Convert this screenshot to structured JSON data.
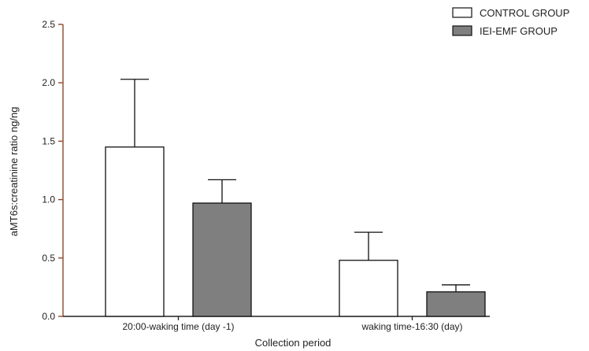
{
  "chart_data": {
    "type": "bar",
    "xlabel": "Collection period",
    "ylabel": "aMT6s:creatinine ratio ng/ng",
    "ylim": [
      0,
      2.5
    ],
    "yticks": [
      "0.0",
      "0.5",
      "1.0",
      "1.5",
      "2.0",
      "2.5"
    ],
    "categories": [
      "20:00-waking time (day -1)",
      "waking time-16:30 (day)"
    ],
    "series": [
      {
        "name": "CONTROL GROUP",
        "values": [
          1.45,
          0.48
        ],
        "errors": [
          0.58,
          0.24
        ],
        "fill": "#ffffff",
        "stroke": "#111111"
      },
      {
        "name": "IEI-EMF GROUP",
        "values": [
          0.97,
          0.21
        ],
        "errors": [
          0.2,
          0.06
        ],
        "fill": "#7f7f7f",
        "stroke": "#111111"
      }
    ],
    "legend": {
      "position": "top-right"
    },
    "grid": false,
    "axis_color": "#8a4a2e"
  }
}
